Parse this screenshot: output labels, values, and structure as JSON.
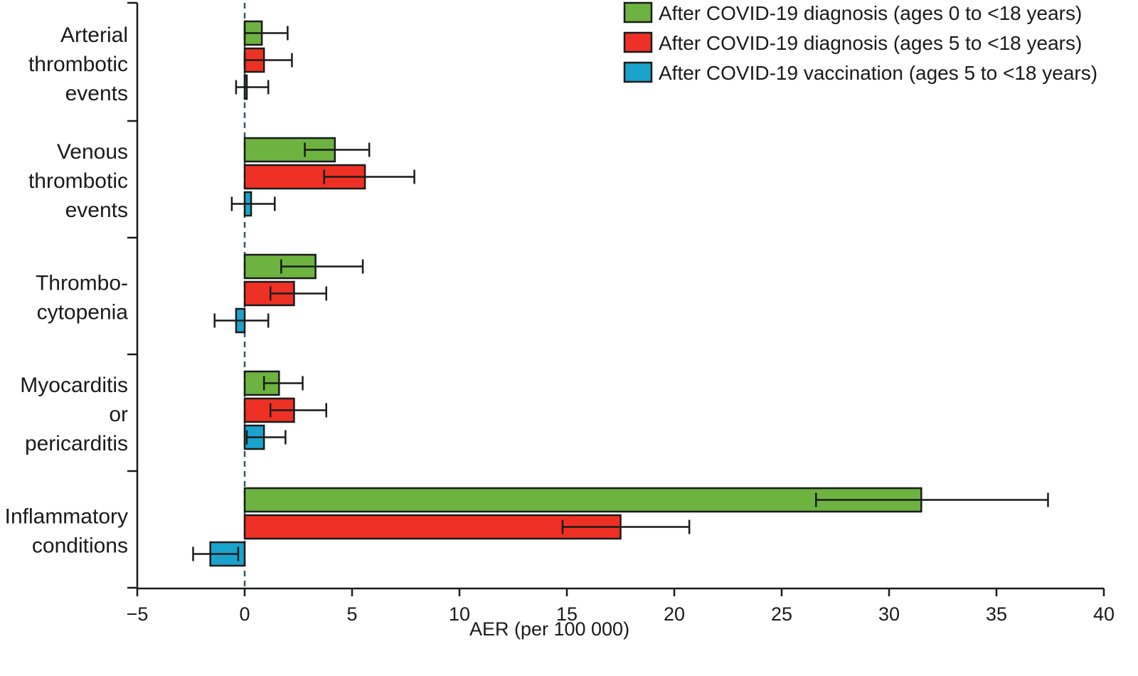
{
  "chart_data": {
    "type": "bar",
    "orientation": "horizontal",
    "xlabel": "AER (per 100 000)",
    "xlim": [
      -5,
      40
    ],
    "xticks": [
      -5,
      0,
      5,
      10,
      15,
      20,
      25,
      30,
      35,
      40
    ],
    "xtick_labels": [
      "−5",
      "0",
      "5",
      "10",
      "15",
      "20",
      "25",
      "30",
      "35",
      "40"
    ],
    "reference_line": 0,
    "legend_position": "top-right",
    "categories": [
      {
        "lines": [
          "Arterial",
          "thrombotic",
          "events"
        ]
      },
      {
        "lines": [
          "Venous",
          "thrombotic",
          "events"
        ]
      },
      {
        "lines": [
          "Thrombo-",
          "cytopenia"
        ]
      },
      {
        "lines": [
          "Myocarditis",
          "or",
          "pericarditis"
        ]
      },
      {
        "lines": [
          "Inflammatory",
          "conditions"
        ]
      }
    ],
    "series": [
      {
        "name": "After COVID-19 diagnosis (ages 0 to <18 years)",
        "color": "#6db33f",
        "values": [
          0.8,
          4.2,
          3.3,
          1.6,
          31.5
        ],
        "ci_low": [
          0.0,
          2.8,
          1.7,
          0.9,
          26.6
        ],
        "ci_high": [
          2.0,
          5.8,
          5.5,
          2.7,
          37.4
        ]
      },
      {
        "name": "After COVID-19 diagnosis (ages 5 to <18 years)",
        "color": "#ee3124",
        "values": [
          0.9,
          5.6,
          2.3,
          2.3,
          17.5
        ],
        "ci_low": [
          0.0,
          3.7,
          1.2,
          1.2,
          14.8
        ],
        "ci_high": [
          2.2,
          7.9,
          3.8,
          3.8,
          20.7
        ]
      },
      {
        "name": "After COVID-19 vaccination (ages 5 to <18 years)",
        "color": "#1aa3cc",
        "values": [
          0.1,
          0.3,
          -0.4,
          0.9,
          -1.6
        ],
        "ci_low": [
          -0.4,
          -0.6,
          -1.4,
          0.1,
          -2.4
        ],
        "ci_high": [
          1.1,
          1.4,
          1.1,
          1.9,
          -0.3
        ]
      }
    ]
  }
}
